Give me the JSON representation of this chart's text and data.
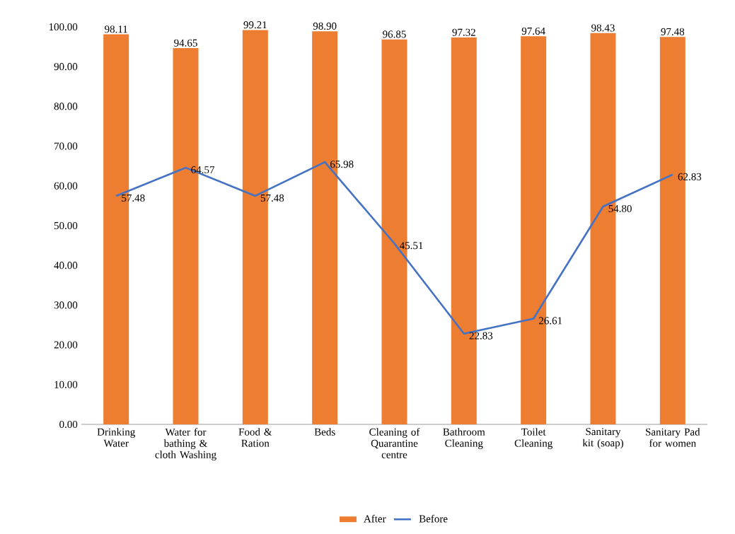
{
  "chart_data": {
    "type": "bar",
    "categories": [
      "Drinking Water",
      "Water for bathing & cloth Washing",
      "Food & Ration",
      "Beds",
      "Cleaning of Quarantine centre",
      "Bathroom Cleaning",
      "Toilet Cleaning",
      "Sanitary kit (soap)",
      "Sanitary Pad for women"
    ],
    "series": [
      {
        "name": "After",
        "color": "#ed7d31",
        "values": [
          98.11,
          94.65,
          99.21,
          98.9,
          96.85,
          97.32,
          97.64,
          98.43,
          97.48
        ],
        "value_labels": [
          "98.11",
          "94.65",
          "99.21",
          "98.90",
          "96.85",
          "97.32",
          "97.64",
          "98.43",
          "97.48"
        ]
      },
      {
        "name": "Before",
        "type": "line",
        "color": "#4472c4",
        "values": [
          57.48,
          64.57,
          57.48,
          65.98,
          45.51,
          22.83,
          26.61,
          54.8,
          62.83
        ],
        "value_labels": [
          "57.48",
          "64.57",
          "57.48",
          "65.98",
          "45.51",
          "22.83",
          "26.61",
          "54.80",
          "62.83"
        ]
      }
    ],
    "ylim": [
      0,
      100
    ],
    "yticks": [
      {
        "value": 0,
        "label": "0.00"
      },
      {
        "value": 10,
        "label": "10.00"
      },
      {
        "value": 20,
        "label": "20.00"
      },
      {
        "value": 30,
        "label": "30.00"
      },
      {
        "value": 40,
        "label": "40.00"
      },
      {
        "value": 50,
        "label": "50.00"
      },
      {
        "value": 60,
        "label": "60.00"
      },
      {
        "value": 70,
        "label": "70.00"
      },
      {
        "value": 80,
        "label": "80.00"
      },
      {
        "value": 90,
        "label": "90.00"
      },
      {
        "value": 100,
        "label": "100.00"
      }
    ],
    "legend": "bottom"
  }
}
